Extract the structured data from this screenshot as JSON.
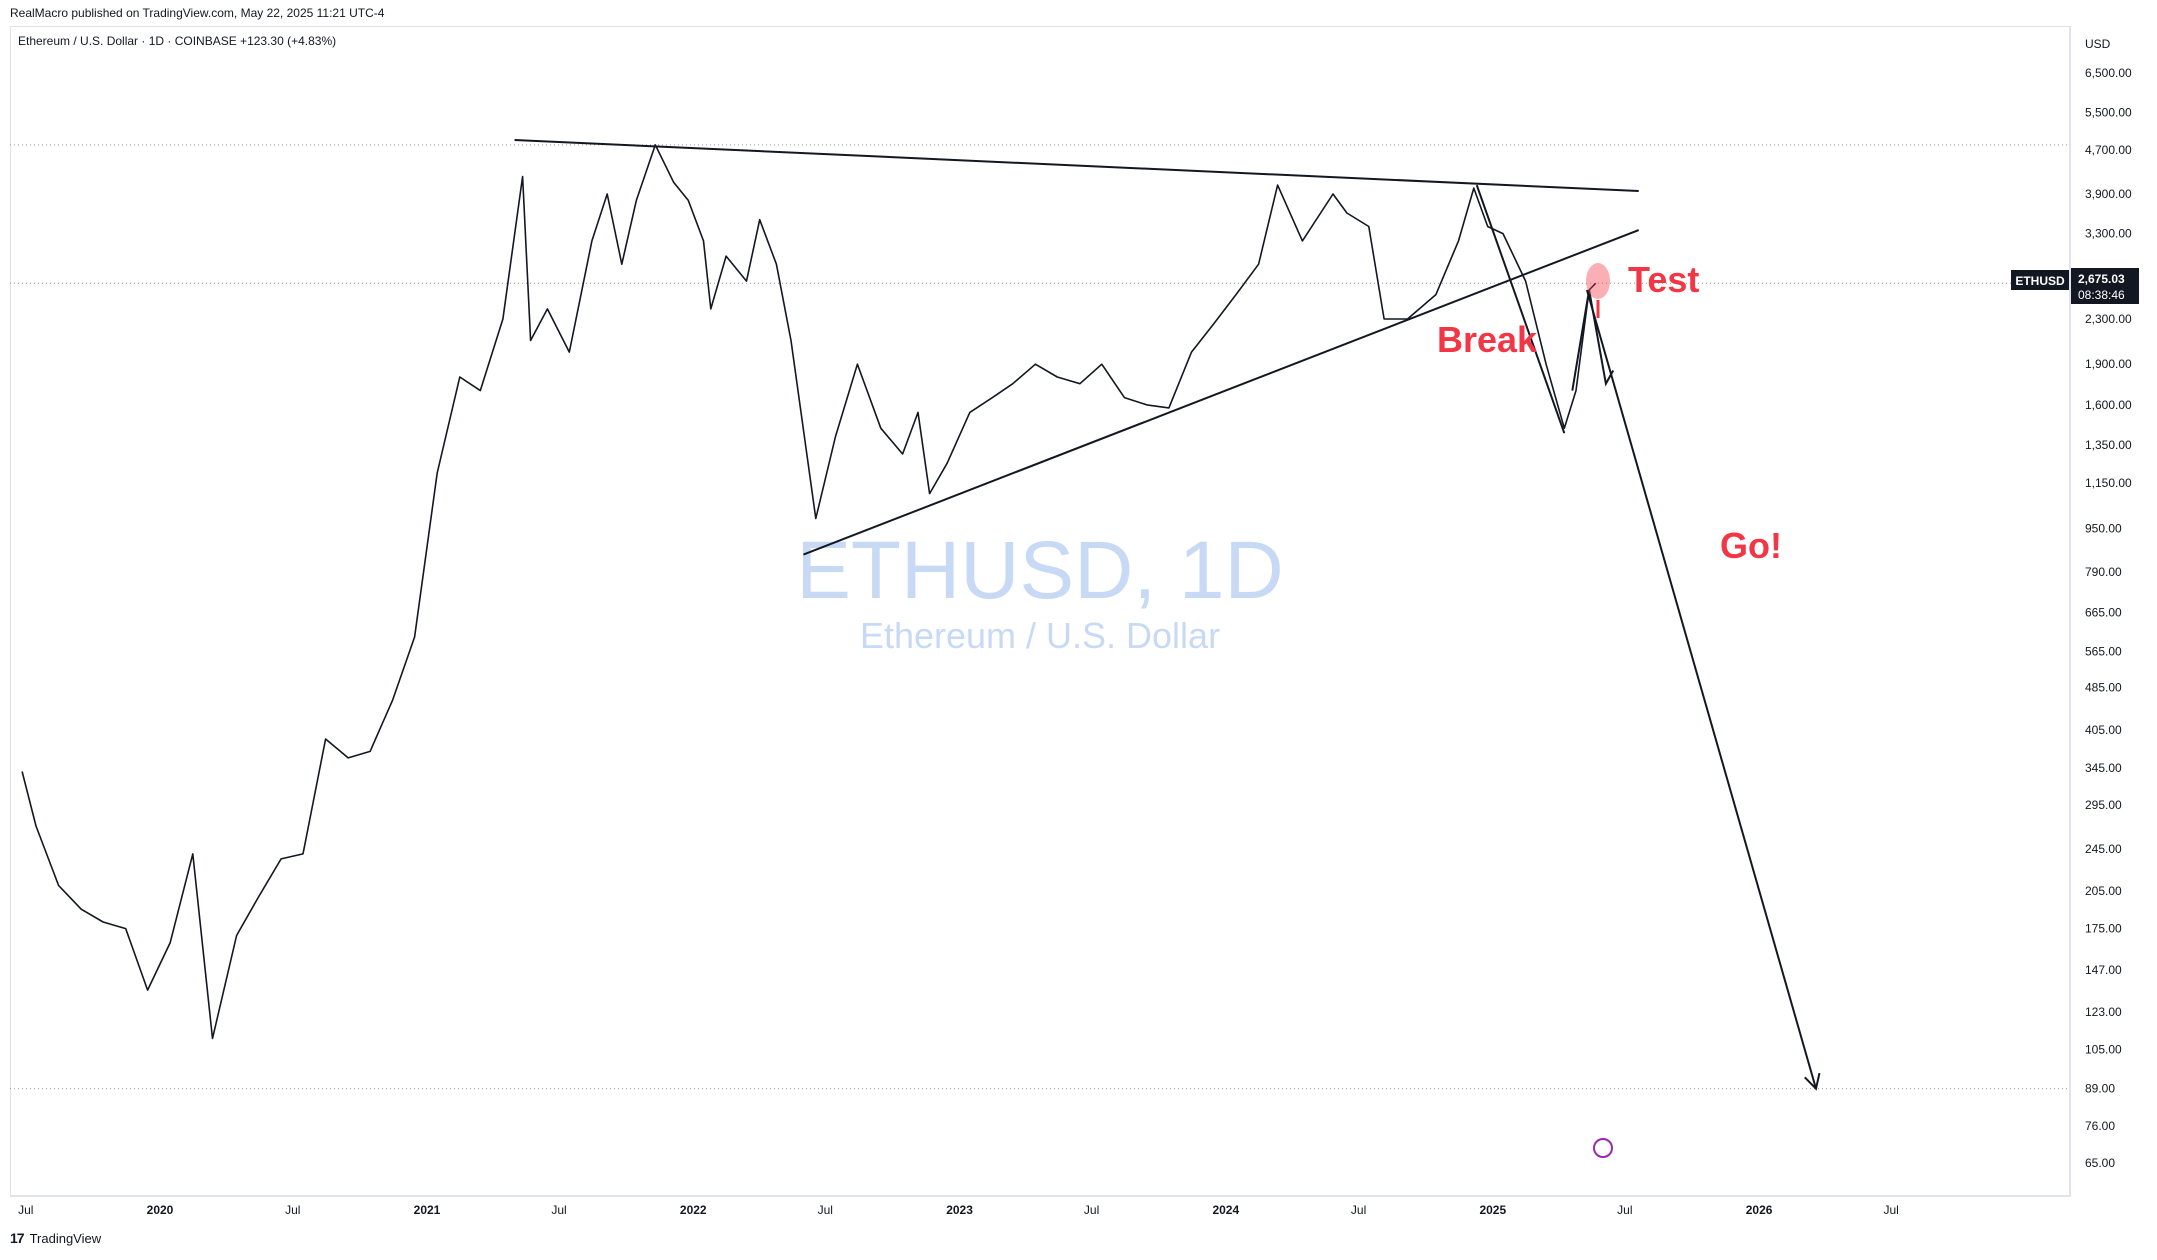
{
  "header": {
    "publisher": "RealMacro published on TradingView.com, May 22, 2025 11:21 UTC-4",
    "symbol_line": "Ethereum / U.S. Dollar · 1D · COINBASE  +123.30 (+4.83%)"
  },
  "watermark": {
    "title": "ETHUSD, 1D",
    "subtitle": "Ethereum / U.S. Dollar"
  },
  "footer": {
    "logo_icon": "tradingview-logo-icon",
    "brand": "TradingView"
  },
  "price_axis": {
    "currency": "USD",
    "last_symbol": "ETHUSD",
    "last_price": "2,675.03",
    "countdown": "08:38:46",
    "colors": {
      "last_price_bg": "#131722",
      "last_price_text": "#ffffff"
    }
  },
  "annotations": {
    "break_label": "Break",
    "test_label": "Test",
    "go_label": "Go!",
    "color": "#f23645"
  },
  "chart_data": {
    "type": "line",
    "scale": "log",
    "ylim": [
      58,
      7800
    ],
    "y_ticks": [
      6500,
      5500,
      4700,
      3900,
      3300,
      2300,
      1900,
      1600,
      1350,
      1150,
      950,
      790,
      665,
      565,
      485,
      405,
      345,
      295,
      245,
      205,
      175,
      147,
      123,
      105,
      89,
      76,
      65
    ],
    "y_tick_labels": [
      "6,500.00",
      "5,500.00",
      "4,700.00",
      "3,900.00",
      "3,300.00",
      "2,300.00",
      "1,900.00",
      "1,600.00",
      "1,350.00",
      "1,150.00",
      "950.00",
      "790.00",
      "665.00",
      "565.00",
      "485.00",
      "405.00",
      "345.00",
      "295.00",
      "245.00",
      "205.00",
      "175.00",
      "147.00",
      "123.00",
      "105.00",
      "89.00",
      "76.00",
      "65.00"
    ],
    "x_tick_labels": [
      "Jul",
      "2020",
      "Jul",
      "2021",
      "Jul",
      "2022",
      "Jul",
      "2023",
      "Jul",
      "2024",
      "Jul",
      "2025",
      "Jul",
      "2026",
      "Jul"
    ],
    "x_tick_dates": [
      "2019-07",
      "2020-01",
      "2020-07",
      "2021-01",
      "2021-07",
      "2022-01",
      "2022-07",
      "2023-01",
      "2023-07",
      "2024-01",
      "2024-07",
      "2025-01",
      "2025-07",
      "2026-01",
      "2026-07"
    ],
    "series": [
      {
        "x": [
          "2019-06-26",
          "2019-07-15",
          "2019-08-15",
          "2019-09-15",
          "2019-10-15",
          "2019-11-15",
          "2019-12-15",
          "2020-01-15",
          "2020-02-15",
          "2020-03-13",
          "2020-04-15",
          "2020-05-15",
          "2020-06-15",
          "2020-07-15",
          "2020-08-15",
          "2020-09-15",
          "2020-10-15",
          "2020-11-15",
          "2020-12-15",
          "2021-01-15",
          "2021-02-15",
          "2021-03-15",
          "2021-04-15",
          "2021-05-12",
          "2021-05-23",
          "2021-06-15",
          "2021-07-15",
          "2021-08-15",
          "2021-09-05",
          "2021-09-25",
          "2021-10-15",
          "2021-11-10",
          "2021-12-05",
          "2021-12-25",
          "2022-01-15",
          "2022-01-25",
          "2022-02-15",
          "2022-03-15",
          "2022-04-02",
          "2022-04-25",
          "2022-05-15",
          "2022-06-18",
          "2022-07-15",
          "2022-08-14",
          "2022-09-15",
          "2022-10-15",
          "2022-11-05",
          "2022-11-21",
          "2022-12-15",
          "2023-01-15",
          "2023-02-15",
          "2023-03-15",
          "2023-04-15",
          "2023-05-15",
          "2023-06-15",
          "2023-07-15",
          "2023-08-15",
          "2023-09-15",
          "2023-10-15",
          "2023-11-15",
          "2023-12-15",
          "2024-01-15",
          "2024-02-15",
          "2024-03-12",
          "2024-04-15",
          "2024-05-27",
          "2024-06-15",
          "2024-07-15",
          "2024-08-05",
          "2024-09-06",
          "2024-10-15",
          "2024-11-15",
          "2024-12-06",
          "2024-12-25",
          "2025-01-15",
          "2025-02-15",
          "2025-03-15",
          "2025-04-09",
          "2025-04-25",
          "2025-05-13",
          "2025-05-22"
        ],
        "y": [
          340,
          270,
          210,
          190,
          180,
          175,
          135,
          165,
          240,
          110,
          170,
          200,
          235,
          240,
          390,
          360,
          370,
          460,
          600,
          1200,
          1800,
          1700,
          2300,
          4200,
          2100,
          2400,
          2000,
          3200,
          3900,
          2900,
          3800,
          4800,
          4100,
          3800,
          3200,
          2400,
          3000,
          2700,
          3500,
          2900,
          2100,
          990,
          1400,
          1900,
          1450,
          1300,
          1550,
          1100,
          1250,
          1550,
          1650,
          1750,
          1900,
          1800,
          1750,
          1900,
          1650,
          1600,
          1580,
          2000,
          2250,
          2550,
          2900,
          4050,
          3200,
          3900,
          3600,
          3400,
          2300,
          2300,
          2550,
          3200,
          4000,
          3400,
          3300,
          2700,
          1900,
          1450,
          1700,
          2600,
          2675
        ]
      }
    ],
    "annotations_text": [
      "Break",
      "Test",
      "Go!"
    ],
    "trendlines": [
      {
        "from": [
          "2021-05-01",
          4900
        ],
        "to": [
          "2025-07-20",
          3950
        ]
      },
      {
        "from": [
          "2022-06-01",
          850
        ],
        "to": [
          "2025-07-20",
          3350
        ]
      },
      {
        "from": [
          "2024-12-10",
          4050
        ],
        "to": [
          "2025-04-09",
          1420
        ]
      },
      {
        "from": [
          "2025-05-10",
          2600
        ],
        "to": [
          "2026-03-20",
          89
        ]
      }
    ],
    "reference_lines": [
      4800,
      2675,
      89
    ],
    "legend": "none",
    "grid": false
  }
}
